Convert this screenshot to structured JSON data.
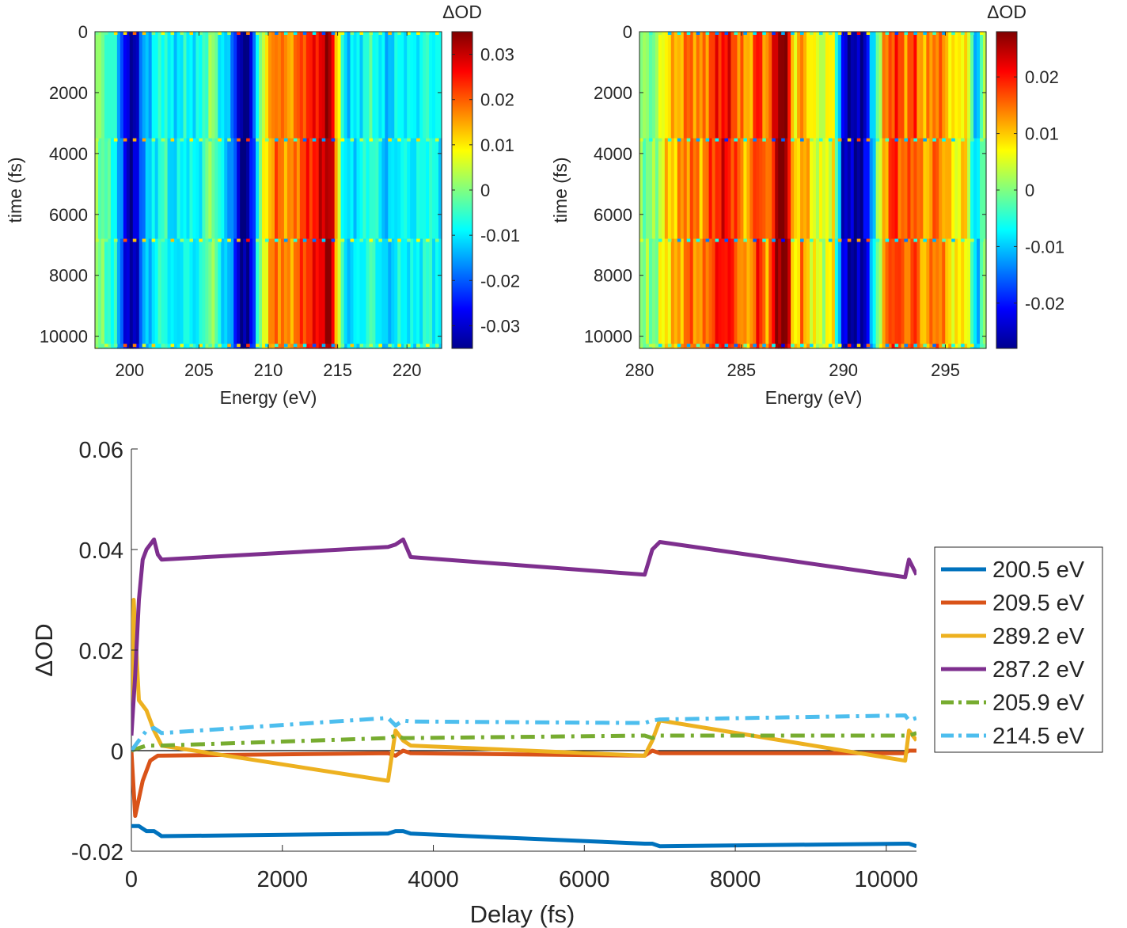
{
  "chart_data": [
    {
      "type": "heatmap",
      "xlabel": "Energy (eV)",
      "ylabel": "time (fs)",
      "xlim": [
        197.5,
        222.5
      ],
      "ylim": [
        0,
        10400
      ],
      "xticks": [
        200,
        205,
        210,
        215,
        220
      ],
      "yticks": [
        0,
        2000,
        4000,
        6000,
        8000,
        10000
      ],
      "colorbar": {
        "title": "ΔOD",
        "clim": [
          -0.035,
          0.035
        ],
        "ticks": [
          "0.03",
          "0.02",
          "0.01",
          "0",
          "-0.01",
          "-0.02",
          "-0.03"
        ],
        "tick_values": [
          0.03,
          0.02,
          0.01,
          0,
          -0.01,
          -0.02,
          -0.03
        ]
      },
      "time_segment_boundaries_fs": [
        3500,
        6800,
        10250
      ],
      "energy_profile": {
        "energy_eV": [
          197.5,
          199.0,
          199.5,
          200.0,
          200.5,
          201.0,
          201.5,
          202.5,
          203.0,
          204.0,
          205.0,
          205.9,
          206.5,
          207.5,
          208.0,
          208.5,
          209.0,
          209.5,
          210.5,
          211.5,
          212.5,
          213.5,
          214.0,
          214.5,
          215.0,
          215.5,
          216.5,
          217.5,
          218.5,
          219.5,
          220.5,
          221.5,
          222.5
        ],
        "delta_od": [
          0.002,
          -0.008,
          -0.022,
          -0.034,
          -0.03,
          -0.015,
          -0.012,
          -0.004,
          -0.012,
          -0.008,
          -0.01,
          0.003,
          -0.008,
          -0.018,
          -0.035,
          -0.034,
          -0.02,
          0.004,
          0.02,
          0.015,
          0.022,
          0.026,
          0.03,
          0.034,
          0.01,
          -0.012,
          -0.01,
          -0.004,
          -0.014,
          -0.008,
          -0.01,
          -0.006,
          -0.01
        ]
      }
    },
    {
      "type": "heatmap",
      "xlabel": "Energy (eV)",
      "ylabel": "time (fs)",
      "xlim": [
        280,
        297
      ],
      "ylim": [
        0,
        10400
      ],
      "xticks": [
        280,
        285,
        290,
        295
      ],
      "yticks": [
        0,
        2000,
        4000,
        6000,
        8000,
        10000
      ],
      "colorbar": {
        "title": "ΔOD",
        "clim": [
          -0.028,
          0.028
        ],
        "ticks": [
          "0.02",
          "0.01",
          "0",
          "-0.01",
          "-0.02"
        ],
        "tick_values": [
          0.02,
          0.01,
          0,
          -0.01,
          -0.02
        ]
      },
      "time_segment_boundaries_fs": [
        3500,
        6800,
        10250
      ],
      "energy_profile": {
        "energy_eV": [
          280.0,
          280.8,
          281.2,
          282.0,
          282.5,
          283.0,
          283.6,
          284.2,
          284.8,
          285.3,
          285.8,
          286.3,
          286.8,
          287.2,
          287.6,
          288.0,
          288.5,
          289.0,
          289.5,
          290.0,
          290.5,
          291.0,
          291.5,
          292.0,
          292.5,
          293.0,
          293.5,
          294.0,
          294.5,
          295.0,
          295.5,
          296.0,
          296.5,
          297.0
        ],
        "delta_od": [
          0.0,
          0.0,
          0.008,
          0.012,
          0.016,
          0.012,
          0.018,
          0.022,
          0.016,
          0.01,
          0.02,
          0.012,
          0.028,
          0.028,
          0.006,
          0.014,
          0.006,
          0.004,
          0.008,
          -0.024,
          -0.026,
          -0.026,
          -0.008,
          0.012,
          0.02,
          0.014,
          0.018,
          0.01,
          0.016,
          0.012,
          0.006,
          0.01,
          -0.012,
          0.004
        ]
      }
    },
    {
      "type": "line",
      "xlabel": "Delay (fs)",
      "ylabel": "ΔOD",
      "xlim": [
        0,
        10400
      ],
      "ylim": [
        -0.02,
        0.06
      ],
      "xticks": [
        "0",
        "2000",
        "4000",
        "6000",
        "8000",
        "10000"
      ],
      "yticks": [
        "-0.02",
        "0",
        "0.02",
        "0.04",
        "0.06"
      ],
      "zero_line": true,
      "legend_position": "right",
      "series": [
        {
          "name": "200.5 eV",
          "color": "#0072bd",
          "style": "solid",
          "x": [
            0,
            100,
            200,
            300,
            400,
            3400,
            3500,
            3600,
            3700,
            6800,
            6900,
            7000,
            10250,
            10300,
            10400
          ],
          "y": [
            -0.015,
            -0.015,
            -0.016,
            -0.016,
            -0.017,
            -0.0165,
            -0.016,
            -0.016,
            -0.0165,
            -0.0185,
            -0.0185,
            -0.019,
            -0.0185,
            -0.0185,
            -0.019
          ]
        },
        {
          "name": "209.5 eV",
          "color": "#d95319",
          "style": "solid",
          "x": [
            0,
            50,
            150,
            250,
            350,
            3400,
            3500,
            3600,
            3700,
            6800,
            6900,
            7000,
            10250,
            10300,
            10400
          ],
          "y": [
            0.0,
            -0.013,
            -0.006,
            -0.002,
            -0.001,
            -0.0005,
            -0.001,
            0.0,
            -0.0005,
            -0.001,
            0.0,
            -0.0005,
            -0.0005,
            0.0,
            0.0
          ]
        },
        {
          "name": "289.2 eV",
          "color": "#edb120",
          "style": "solid",
          "x": [
            0,
            30,
            100,
            200,
            300,
            400,
            3400,
            3500,
            3600,
            3700,
            6800,
            6900,
            7000,
            10250,
            10300,
            10400
          ],
          "y": [
            0.003,
            0.03,
            0.01,
            0.008,
            0.004,
            0.001,
            -0.006,
            0.004,
            0.002,
            0.001,
            -0.001,
            0.002,
            0.006,
            -0.002,
            0.004,
            0.002
          ]
        },
        {
          "name": "287.2 eV",
          "color": "#7e2f8e",
          "style": "solid",
          "x": [
            0,
            50,
            100,
            150,
            200,
            250,
            300,
            350,
            400,
            3400,
            3500,
            3600,
            3700,
            6800,
            6900,
            7000,
            10250,
            10300,
            10400
          ],
          "y": [
            0.003,
            0.015,
            0.03,
            0.038,
            0.04,
            0.041,
            0.042,
            0.039,
            0.038,
            0.0405,
            0.041,
            0.042,
            0.0385,
            0.035,
            0.04,
            0.0415,
            0.0345,
            0.038,
            0.035
          ]
        },
        {
          "name": "205.9 eV",
          "color": "#77ac30",
          "style": "dashdot",
          "x": [
            0,
            100,
            200,
            300,
            400,
            3400,
            3500,
            3600,
            3700,
            6800,
            6900,
            7000,
            10250,
            10300,
            10400
          ],
          "y": [
            0.0,
            0.0005,
            0.001,
            0.001,
            0.001,
            0.0025,
            0.003,
            0.0025,
            0.0025,
            0.003,
            0.0025,
            0.003,
            0.003,
            0.003,
            0.0035
          ]
        },
        {
          "name": "214.5 eV",
          "color": "#4dbeee",
          "style": "dashdot",
          "x": [
            0,
            100,
            200,
            300,
            400,
            3400,
            3500,
            3600,
            3700,
            6800,
            6900,
            7000,
            10250,
            10300,
            10400
          ],
          "y": [
            0.0,
            0.002,
            0.004,
            0.0045,
            0.0035,
            0.0065,
            0.005,
            0.006,
            0.0058,
            0.0055,
            0.006,
            0.0062,
            0.007,
            0.006,
            0.0065
          ]
        }
      ]
    }
  ]
}
